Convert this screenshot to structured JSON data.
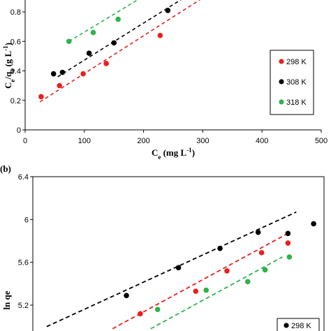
{
  "chart_data": [
    {
      "panel": "",
      "type": "scatter",
      "title": "",
      "xlabel": "Ce (mg L-1)",
      "ylabel": "Ce/qe (g L-1)",
      "xlim": [
        0,
        500
      ],
      "ylim": [
        0,
        0.9
      ],
      "x_ticks": [
        "0",
        "100",
        "200",
        "300",
        "400",
        "500"
      ],
      "y_ticks": [
        "0",
        "0.2",
        "0.4",
        "0.6",
        "0.8"
      ],
      "legend": {
        "position": "right",
        "labels": [
          "298 K",
          "308 K",
          "318 K"
        ]
      },
      "series": [
        {
          "name": "298 K",
          "color": "#e8201f",
          "points": [
            [
              27,
              0.225
            ],
            [
              58,
              0.3
            ],
            [
              98,
              0.38
            ],
            [
              137,
              0.45
            ],
            [
              228,
              0.64
            ]
          ],
          "fit": [
            [
              25,
              0.19
            ],
            [
              310,
              0.92
            ]
          ]
        },
        {
          "name": "308 K",
          "color": "#000000",
          "points": [
            [
              48,
              0.38
            ],
            [
              63,
              0.39
            ],
            [
              108,
              0.52
            ],
            [
              150,
              0.59
            ],
            [
              241,
              0.81
            ]
          ],
          "fit": [
            [
              55,
              0.36
            ],
            [
              290,
              0.95
            ]
          ]
        },
        {
          "name": "318 K",
          "color": "#2db34a",
          "points": [
            [
              74,
              0.6
            ],
            [
              115,
              0.66
            ],
            [
              157,
              0.75
            ]
          ],
          "fit": [
            [
              74,
              0.6
            ],
            [
              210,
              0.93
            ]
          ]
        }
      ]
    },
    {
      "panel": "(b)",
      "type": "scatter",
      "title": "",
      "xlabel": "",
      "ylabel": "ln qe",
      "ylim": [
        4.98,
        6.4
      ],
      "y_ticks": [
        "5.2",
        "5.6",
        "6",
        "6.4"
      ],
      "legend": {
        "position": "bottom-right",
        "labels": [
          "298 K"
        ]
      },
      "series": [
        {
          "name": "",
          "color": "#000000",
          "points": [
            [
              3.55,
              5.29
            ],
            [
              4.3,
              5.55
            ],
            [
              4.9,
              5.73
            ],
            [
              5.45,
              5.88
            ],
            [
              5.88,
              5.87
            ],
            [
              6.25,
              5.96
            ]
          ],
          "fit": [
            [
              2.4,
              5.0
            ],
            [
              6.0,
              6.07
            ]
          ]
        },
        {
          "name": "",
          "color": "#e8201f",
          "points": [
            [
              3.75,
              5.12
            ],
            [
              4.55,
              5.33
            ],
            [
              5.0,
              5.52
            ],
            [
              5.5,
              5.69
            ],
            [
              5.88,
              5.78
            ]
          ],
          "fit": [
            [
              3.35,
              4.98
            ],
            [
              5.85,
              5.86
            ]
          ]
        },
        {
          "name": "",
          "color": "#2db34a",
          "points": [
            [
              4.0,
              5.16
            ],
            [
              4.7,
              5.34
            ],
            [
              5.3,
              5.42
            ],
            [
              5.55,
              5.53
            ],
            [
              5.9,
              5.65
            ]
          ],
          "fit": [
            [
              3.9,
              4.98
            ],
            [
              5.8,
              5.65
            ]
          ]
        }
      ]
    }
  ]
}
